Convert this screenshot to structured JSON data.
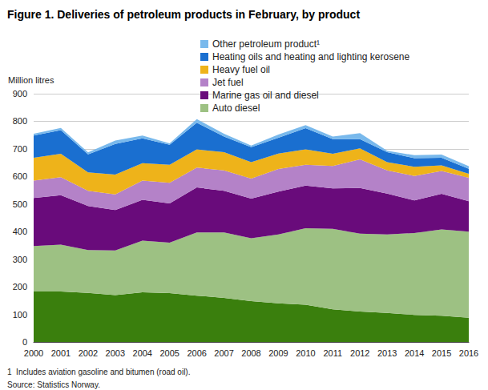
{
  "chart_data": {
    "type": "area",
    "title": "Figure 1. Deliveries of petroleum products in February, by product",
    "y_label": "Million litres",
    "footnote": "1  Includes aviation gasoline and bitumen (road oil).",
    "source": "Source: Statistics Norway.",
    "stacked": true,
    "grid": true,
    "legend": "top-left",
    "categories": [
      "2000",
      "2001",
      "2002",
      "2003",
      "2004",
      "2005",
      "2006",
      "2007",
      "2008",
      "2009",
      "2010",
      "2011",
      "2012",
      "2013",
      "2014",
      "2015",
      "2016"
    ],
    "ylim": [
      0,
      900
    ],
    "yticks": [
      0,
      100,
      200,
      300,
      400,
      500,
      600,
      700,
      800,
      900
    ],
    "series": [
      {
        "name": null,
        "color": "#3a7f0d",
        "values": [
          183,
          183,
          178,
          170,
          180,
          177,
          168,
          160,
          148,
          140,
          135,
          118,
          110,
          105,
          98,
          95,
          88
        ]
      },
      {
        "name": "Auto diesel",
        "color": "#9dc183",
        "values": [
          165,
          170,
          155,
          162,
          187,
          183,
          229,
          237,
          228,
          250,
          277,
          292,
          283,
          285,
          297,
          313,
          312
        ]
      },
      {
        "name": "Marine gas oil and diesel",
        "color": "#690b7b",
        "values": [
          174,
          179,
          160,
          146,
          148,
          142,
          163,
          151,
          144,
          155,
          155,
          147,
          165,
          148,
          118,
          129,
          110
        ]
      },
      {
        "name": "Jet fuel",
        "color": "#b482c8",
        "values": [
          63,
          65,
          55,
          57,
          70,
          75,
          72,
          74,
          72,
          82,
          75,
          81,
          104,
          84,
          89,
          83,
          85
        ]
      },
      {
        "name": "Heavy fuel oil",
        "color": "#eeb31a",
        "values": [
          83,
          85,
          67,
          72,
          63,
          65,
          66,
          66,
          60,
          56,
          56,
          44,
          40,
          30,
          33,
          20,
          15
        ]
      },
      {
        "name": "Heating oils and heating and lighting kerosene",
        "color": "#1a6fd0",
        "values": [
          80,
          86,
          65,
          111,
          90,
          73,
          97,
          57,
          54,
          57,
          77,
          53,
          33,
          36,
          31,
          28,
          18
        ]
      },
      {
        "name": "Other petroleum product¹",
        "color": "#79b9ec",
        "values": [
          7,
          8,
          7,
          12,
          10,
          5,
          13,
          10,
          6,
          12,
          11,
          10,
          22,
          5,
          11,
          11,
          9
        ]
      }
    ]
  }
}
